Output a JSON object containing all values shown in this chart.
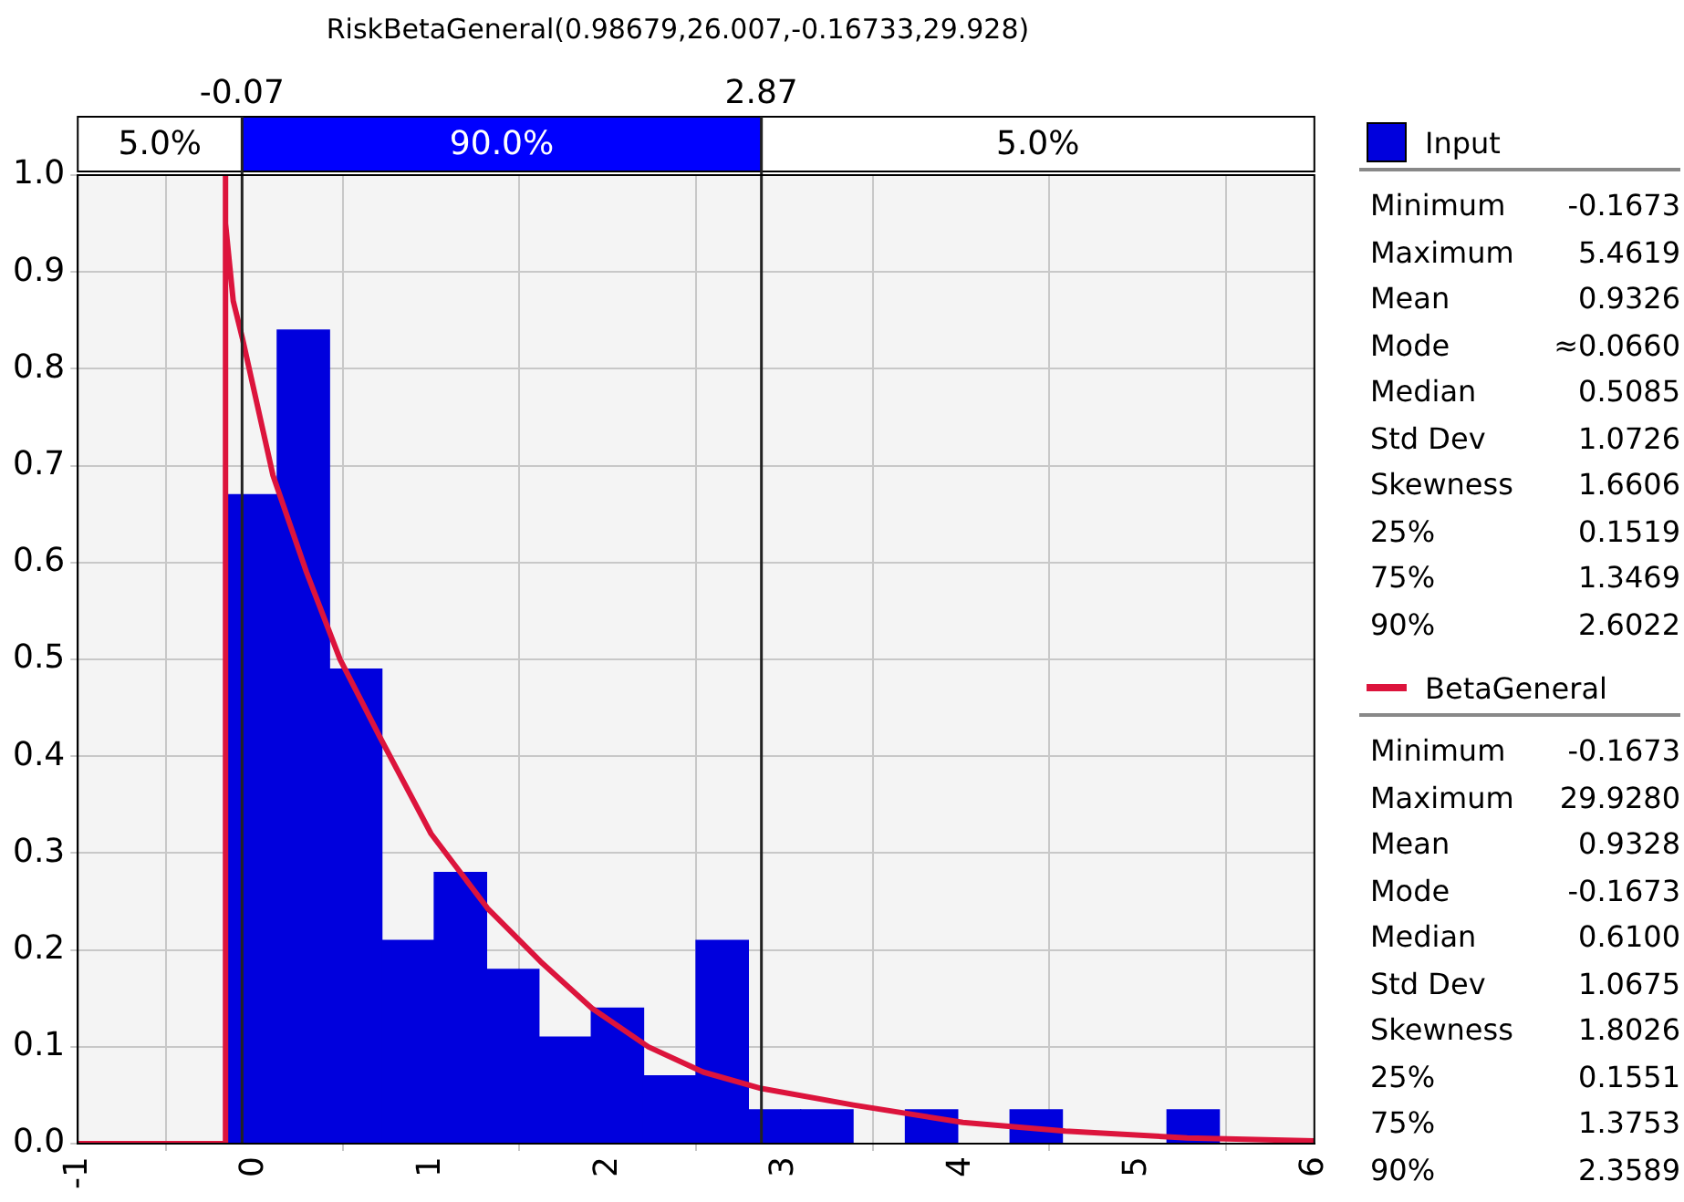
{
  "chart_data": {
    "type": "histogram",
    "title": "RiskBetaGeneral(0.98679,26.007,-0.16733,29.928)",
    "xlim": [
      -1,
      6
    ],
    "xticks": [
      -1,
      0,
      1,
      2,
      3,
      4,
      5,
      6
    ],
    "ylim": [
      0,
      1
    ],
    "yticks": [
      {
        "value": 0,
        "label": "0.0"
      },
      0.1,
      0.2,
      0.3,
      0.4,
      0.5,
      0.6,
      0.7,
      0.8,
      0.9,
      {
        "value": 1,
        "label": "1.0"
      }
    ],
    "grid": true,
    "legend": "right",
    "series": [
      {
        "name": "Input",
        "color": "#0000dd",
        "bins": [
          -0.1673,
          0.129,
          0.425,
          0.722,
          1.018,
          1.314,
          1.611,
          1.907,
          2.203,
          2.5,
          2.796,
          3.092,
          3.389,
          3.685,
          3.981,
          4.277,
          4.574,
          4.87,
          5.166,
          5.462
        ],
        "values": [
          0.67,
          0.84,
          0.49,
          0.21,
          0.28,
          0.18,
          0.11,
          0.14,
          0.07,
          0.21,
          0.035,
          0.035,
          0,
          0.035,
          0,
          0.035,
          0,
          0,
          0.035
        ]
      },
      {
        "type": "line",
        "name": "BetaGeneral",
        "color": "#dc143c",
        "x": [
          -1,
          -0.1673,
          -0.1673,
          -0.16,
          -0.12,
          -0.066,
          0.105,
          0.295,
          0.485,
          0.71,
          1.0,
          1.32,
          1.62,
          1.91,
          2.23,
          2.54,
          2.87,
          3.39,
          4.01,
          4.59,
          5.28,
          6.0
        ],
        "values": [
          0,
          0,
          1.0,
          0.95,
          0.87,
          0.83,
          0.69,
          0.59,
          0.5,
          0.42,
          0.32,
          0.243,
          0.188,
          0.14,
          0.1,
          0.074,
          0.057,
          0.04,
          0.022,
          0.013,
          0.006,
          0.003
        ]
      }
    ],
    "ref_lines": [
      {
        "axis": "x",
        "value": -0.07,
        "label": "-0.07"
      },
      {
        "axis": "x",
        "value": 2.87,
        "label": "2.87"
      }
    ],
    "annotations": [
      "5.0%",
      "90.0%",
      "5.0%",
      "Minimum",
      "-0.1673",
      "Maximum",
      "5.4619",
      "Mean",
      "0.9326",
      "Mode",
      "≈0.0660",
      "Median",
      "0.5085",
      "Std Dev",
      "1.0726",
      "Skewness",
      "1.6606",
      "25%",
      "0.1519",
      "75%",
      "1.3469",
      "90%",
      "2.6022",
      "Minimum",
      "-0.1673",
      "Maximum",
      "29.9280",
      "Mean",
      "0.9328",
      "Mode",
      "-0.1673",
      "Median",
      "0.6100",
      "Std Dev",
      "1.0675",
      "Skewness",
      "1.8026",
      "25%",
      "0.1551",
      "75%",
      "1.3753",
      "90%",
      "2.3589"
    ]
  }
}
